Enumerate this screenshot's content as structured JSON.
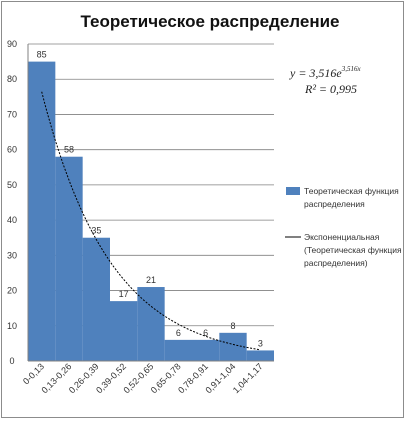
{
  "chart_data": {
    "type": "bar",
    "title": "Теоретическое  распределение",
    "categories": [
      "0-0,13",
      "0,13-0,26",
      "0,26-0,39",
      "0,39-0,52",
      "0,52-0,65",
      "0,65-0,78",
      "0,78-0,91",
      "0,91-1,04",
      "1,04-1,17"
    ],
    "series": [
      {
        "name": "Теоретическая функция распределения",
        "values": [
          85,
          58,
          35,
          17,
          21,
          6,
          6,
          8,
          3
        ],
        "color": "#4f81bd"
      }
    ],
    "trendline": {
      "name": "Экспоненциальная (Теоретическая функция распределения)",
      "type": "exponential",
      "a": 3.516,
      "b": 3.516,
      "equation": "y = 3,516e^3,516x",
      "equation_main": "y = 3,516e",
      "equation_exp": "3,516x",
      "r2_label": "R² = 0,995",
      "color": "#000000"
    },
    "ylim": [
      0,
      90
    ],
    "yticks": [
      0,
      10,
      20,
      30,
      40,
      50,
      60,
      70,
      80,
      90
    ],
    "grid": true,
    "legend": "right",
    "legend_bar_label_lines": [
      "Теоретическая функция",
      "распределения"
    ],
    "legend_line_label_lines": [
      "Экспоненциальная",
      "(Теоретическая функция",
      "распределения)"
    ],
    "xlabel": "",
    "ylabel": ""
  }
}
